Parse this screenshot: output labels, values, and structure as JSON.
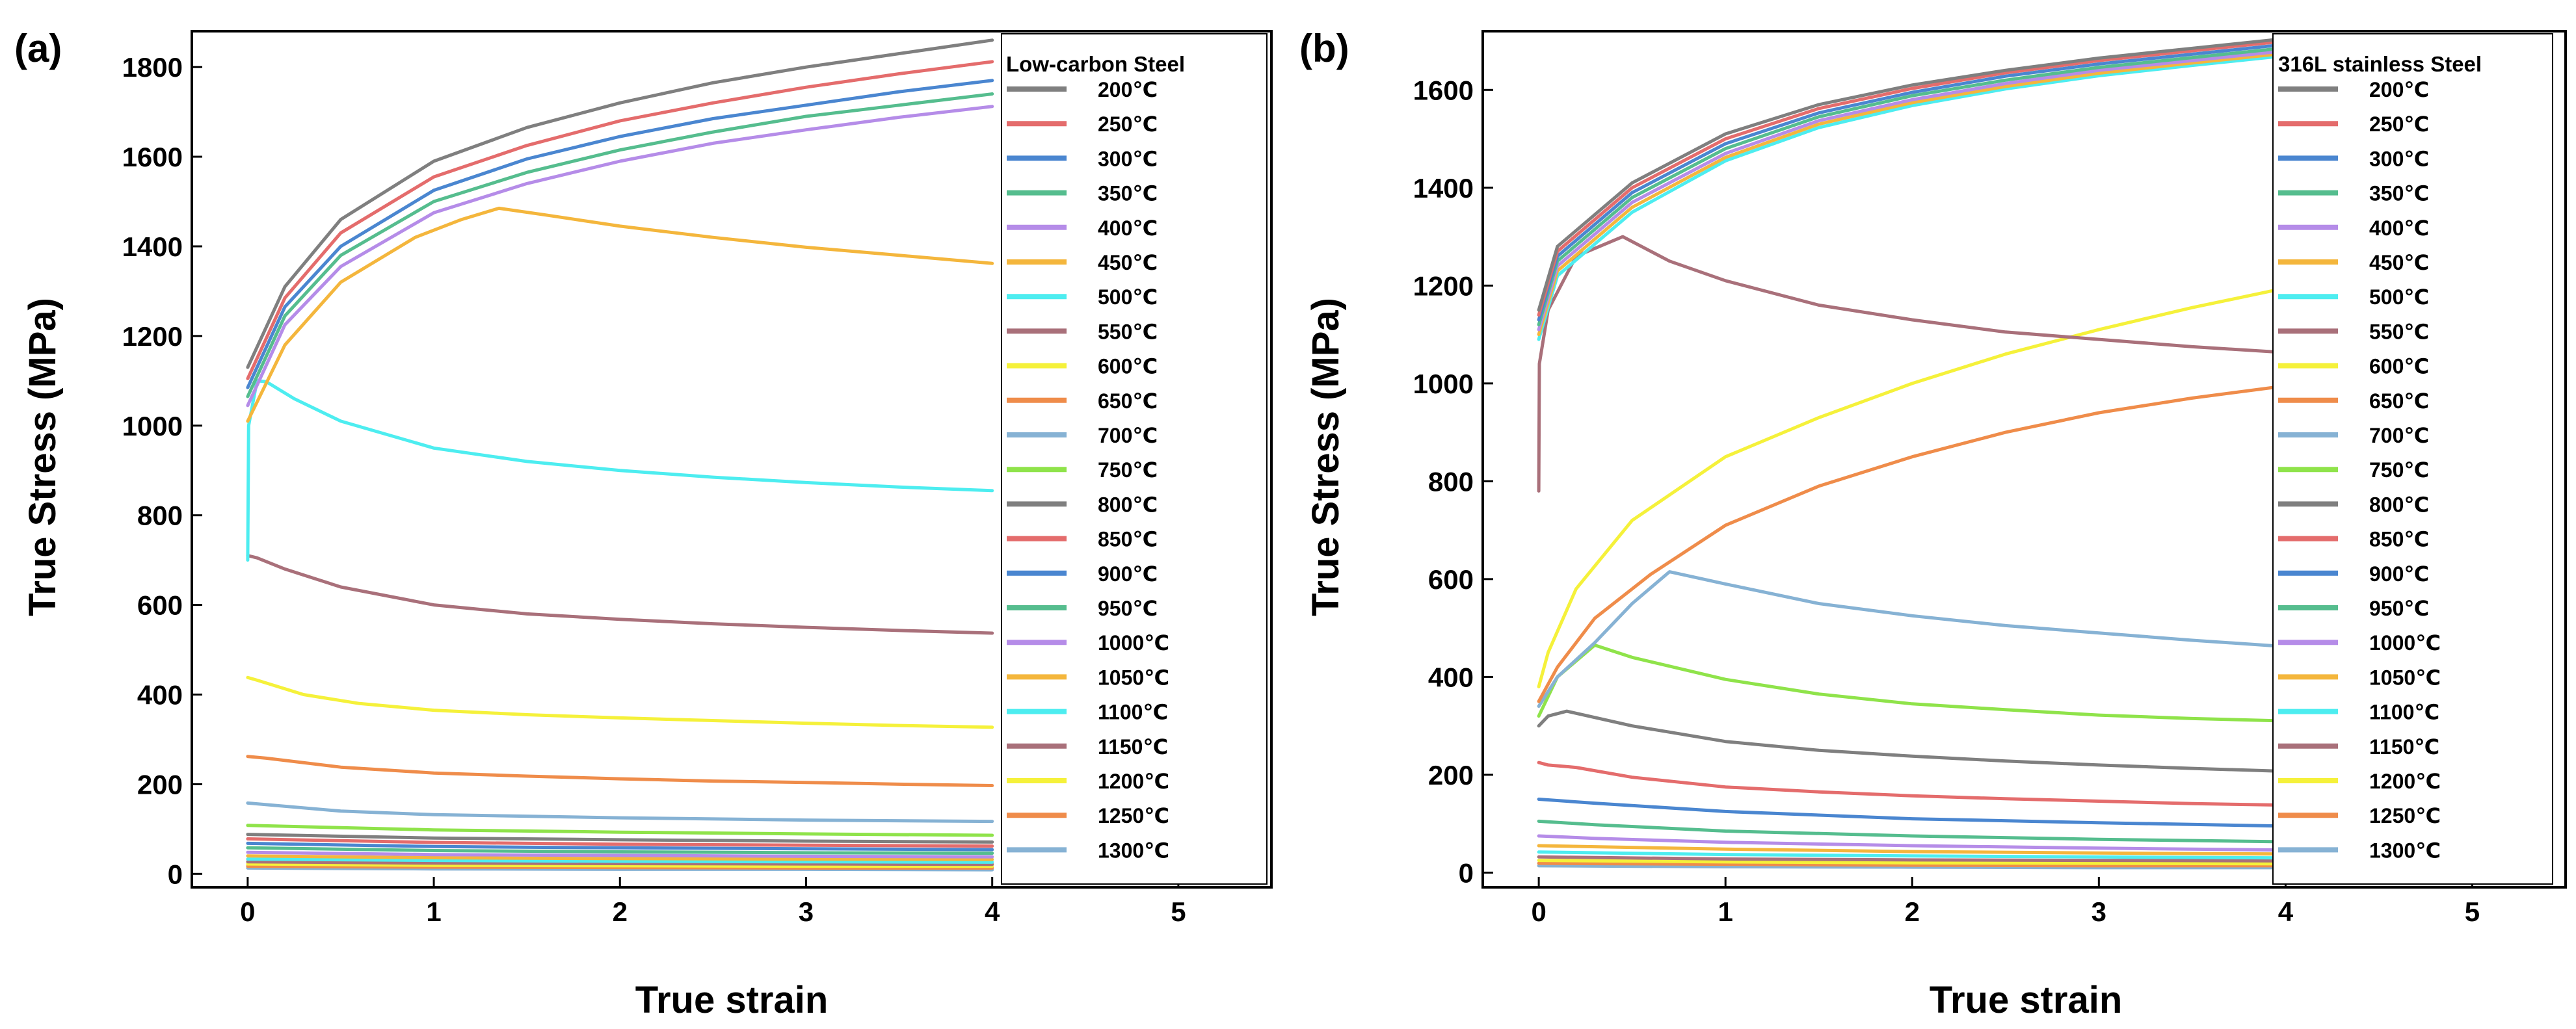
{
  "legend_labels": [
    "200℃",
    "250℃",
    "300℃",
    "350℃",
    "400℃",
    "450℃",
    "500℃",
    "550℃",
    "600℃",
    "650℃",
    "700℃",
    "750℃",
    "800℃",
    "850℃",
    "900℃",
    "950℃",
    "1000℃",
    "1050℃",
    "1100℃",
    "1150℃",
    "1200℃",
    "1250℃",
    "1300℃"
  ],
  "colors": [
    "#7f7f7f",
    "#e46c6c",
    "#4a86d0",
    "#55bd8e",
    "#b58ce8",
    "#f4b63c",
    "#4dedf0",
    "#a9707a",
    "#f5f13a",
    "#ef8c4a",
    "#86b2d4",
    "#8fe34a",
    "#7f7f7f",
    "#e46c6c",
    "#4a86d0",
    "#55bd8e",
    "#b58ce8",
    "#f4b63c",
    "#4dedf0",
    "#a9707a",
    "#f5f13a",
    "#ef8c4a",
    "#86b2d4"
  ],
  "chart_data": [
    {
      "type": "line",
      "panel_label": "(a)",
      "legend_title": "Low-carbon Steel",
      "xlabel": "True strain",
      "ylabel": "True Stress (MPa)",
      "xlim": [
        -0.3,
        5.5
      ],
      "ylim": [
        -30,
        1880
      ],
      "xticks": [
        0,
        1,
        2,
        3,
        4,
        5
      ],
      "yticks": [
        0,
        200,
        400,
        600,
        800,
        1000,
        1200,
        1400,
        1600,
        1800
      ],
      "series": [
        {
          "name": "200℃",
          "x": [
            0,
            0.2,
            0.5,
            1,
            1.5,
            2,
            2.5,
            3,
            3.5,
            4
          ],
          "y": [
            1130,
            1310,
            1460,
            1590,
            1665,
            1720,
            1765,
            1800,
            1830,
            1860
          ]
        },
        {
          "name": "250℃",
          "x": [
            0,
            0.2,
            0.5,
            1,
            1.5,
            2,
            2.5,
            3,
            3.5,
            4
          ],
          "y": [
            1105,
            1285,
            1430,
            1555,
            1625,
            1680,
            1720,
            1755,
            1785,
            1812
          ]
        },
        {
          "name": "300℃",
          "x": [
            0,
            0.2,
            0.5,
            1,
            1.5,
            2,
            2.5,
            3,
            3.5,
            4
          ],
          "y": [
            1085,
            1265,
            1400,
            1525,
            1595,
            1645,
            1685,
            1715,
            1745,
            1770
          ]
        },
        {
          "name": "350℃",
          "x": [
            0,
            0.2,
            0.5,
            1,
            1.5,
            2,
            2.5,
            3,
            3.5,
            4
          ],
          "y": [
            1065,
            1245,
            1380,
            1500,
            1565,
            1615,
            1655,
            1690,
            1715,
            1740
          ]
        },
        {
          "name": "400℃",
          "x": [
            0,
            0.2,
            0.5,
            1,
            1.5,
            2,
            2.5,
            3,
            3.5,
            4
          ],
          "y": [
            1045,
            1225,
            1355,
            1475,
            1540,
            1590,
            1630,
            1660,
            1688,
            1712
          ]
        },
        {
          "name": "450℃",
          "x": [
            0,
            0.2,
            0.5,
            0.9,
            1.15,
            1.35,
            1.6,
            2,
            2.5,
            3,
            3.5,
            4
          ],
          "y": [
            1010,
            1180,
            1320,
            1420,
            1460,
            1485,
            1470,
            1445,
            1420,
            1398,
            1380,
            1362
          ]
        },
        {
          "name": "500℃",
          "x": [
            0,
            0.005,
            0.05,
            0.1,
            0.25,
            0.5,
            1,
            1.5,
            2,
            2.5,
            3,
            3.5,
            4
          ],
          "y": [
            700,
            1000,
            1100,
            1098,
            1060,
            1010,
            950,
            920,
            900,
            885,
            873,
            863,
            855
          ]
        },
        {
          "name": "550℃",
          "x": [
            0,
            0.05,
            0.2,
            0.5,
            1,
            1.5,
            2,
            2.5,
            3,
            3.5,
            4
          ],
          "y": [
            710,
            705,
            680,
            640,
            600,
            580,
            568,
            558,
            550,
            543,
            537
          ]
        },
        {
          "name": "600℃",
          "x": [
            0,
            0.05,
            0.3,
            0.6,
            1,
            1.5,
            2,
            2.5,
            3,
            3.5,
            4
          ],
          "y": [
            438,
            432,
            400,
            380,
            365,
            355,
            348,
            342,
            336,
            331,
            327
          ]
        },
        {
          "name": "650℃",
          "x": [
            0,
            0.1,
            0.5,
            1,
            1.5,
            2,
            2.5,
            3,
            3.5,
            4
          ],
          "y": [
            262,
            258,
            238,
            225,
            218,
            212,
            207,
            204,
            200,
            197
          ]
        },
        {
          "name": "700℃",
          "x": [
            0,
            0.5,
            1,
            2,
            3,
            4
          ],
          "y": [
            158,
            140,
            132,
            125,
            120,
            117
          ]
        },
        {
          "name": "750℃",
          "x": [
            0,
            1,
            2,
            3,
            4
          ],
          "y": [
            108,
            98,
            93,
            89,
            86
          ]
        },
        {
          "name": "800℃",
          "x": [
            0,
            1,
            2,
            3,
            4
          ],
          "y": [
            88,
            80,
            76,
            73,
            71
          ]
        },
        {
          "name": "850℃",
          "x": [
            0,
            1,
            2,
            3,
            4
          ],
          "y": [
            78,
            70,
            66,
            64,
            62
          ]
        },
        {
          "name": "900℃",
          "x": [
            0,
            1,
            2,
            3,
            4
          ],
          "y": [
            68,
            61,
            58,
            56,
            54
          ]
        },
        {
          "name": "950℃",
          "x": [
            0,
            1,
            2,
            3,
            4
          ],
          "y": [
            58,
            52,
            49,
            47,
            46
          ]
        },
        {
          "name": "1000℃",
          "x": [
            0,
            1,
            2,
            3,
            4
          ],
          "y": [
            48,
            43,
            41,
            39,
            38
          ]
        },
        {
          "name": "1050℃",
          "x": [
            0,
            1,
            2,
            3,
            4
          ],
          "y": [
            40,
            36,
            34,
            33,
            32
          ]
        },
        {
          "name": "1100℃",
          "x": [
            0,
            1,
            2,
            3,
            4
          ],
          "y": [
            33,
            30,
            28,
            27,
            26
          ]
        },
        {
          "name": "1150℃",
          "x": [
            0,
            1,
            2,
            3,
            4
          ],
          "y": [
            27,
            24,
            23,
            22,
            21
          ]
        },
        {
          "name": "1200℃",
          "x": [
            0,
            1,
            2,
            3,
            4
          ],
          "y": [
            22,
            19,
            18,
            17,
            17
          ]
        },
        {
          "name": "1250℃",
          "x": [
            0,
            1,
            2,
            3,
            4
          ],
          "y": [
            17,
            15,
            14,
            13,
            13
          ]
        },
        {
          "name": "1300℃",
          "x": [
            0,
            1,
            2,
            3,
            4
          ],
          "y": [
            13,
            11,
            10,
            10,
            9
          ]
        }
      ]
    },
    {
      "type": "line",
      "panel_label": "(b)",
      "legend_title": "316L stainless Steel",
      "xlabel": "True strain",
      "ylabel": "True Stress (MPa)",
      "xlim": [
        -0.3,
        5.5
      ],
      "ylim": [
        -30,
        1720
      ],
      "xticks": [
        0,
        1,
        2,
        3,
        4,
        5
      ],
      "yticks": [
        0,
        200,
        400,
        600,
        800,
        1000,
        1200,
        1400,
        1600
      ],
      "series": [
        {
          "name": "200℃",
          "x": [
            0,
            0.1,
            0.5,
            1,
            1.5,
            2,
            2.5,
            3,
            3.5,
            4
          ],
          "y": [
            1150,
            1280,
            1410,
            1510,
            1570,
            1610,
            1640,
            1665,
            1685,
            1705
          ]
        },
        {
          "name": "250℃",
          "x": [
            0,
            0.1,
            0.5,
            1,
            1.5,
            2,
            2.5,
            3,
            3.5,
            4
          ],
          "y": [
            1140,
            1270,
            1400,
            1500,
            1562,
            1603,
            1635,
            1660,
            1680,
            1700
          ]
        },
        {
          "name": "300℃",
          "x": [
            0,
            0.1,
            0.5,
            1,
            1.5,
            2,
            2.5,
            3,
            3.5,
            4
          ],
          "y": [
            1130,
            1260,
            1390,
            1490,
            1553,
            1595,
            1628,
            1653,
            1673,
            1693
          ]
        },
        {
          "name": "350℃",
          "x": [
            0,
            0.1,
            0.5,
            1,
            1.5,
            2,
            2.5,
            3,
            3.5,
            4
          ],
          "y": [
            1120,
            1250,
            1380,
            1480,
            1545,
            1588,
            1620,
            1646,
            1666,
            1686
          ]
        },
        {
          "name": "400℃",
          "x": [
            0,
            0.1,
            0.5,
            1,
            1.5,
            2,
            2.5,
            3,
            3.5,
            4
          ],
          "y": [
            1110,
            1240,
            1370,
            1470,
            1537,
            1580,
            1613,
            1640,
            1660,
            1680
          ]
        },
        {
          "name": "450℃",
          "x": [
            0,
            0.1,
            0.5,
            1,
            1.5,
            2,
            2.5,
            3,
            3.5,
            4
          ],
          "y": [
            1100,
            1230,
            1360,
            1462,
            1530,
            1574,
            1607,
            1634,
            1655,
            1675
          ]
        },
        {
          "name": "500℃",
          "x": [
            0,
            0.1,
            0.5,
            1,
            1.5,
            2,
            2.5,
            3,
            3.5,
            4
          ],
          "y": [
            1090,
            1220,
            1350,
            1455,
            1523,
            1568,
            1602,
            1629,
            1650,
            1670
          ]
        },
        {
          "name": "550℃",
          "x": [
            0,
            0.003,
            0.05,
            0.2,
            0.45,
            0.7,
            1,
            1.5,
            2,
            2.5,
            3,
            3.5,
            4
          ],
          "y": [
            780,
            1040,
            1150,
            1260,
            1300,
            1250,
            1210,
            1160,
            1130,
            1105,
            1090,
            1075,
            1063
          ]
        },
        {
          "name": "600℃",
          "x": [
            0,
            0.05,
            0.2,
            0.5,
            1,
            1.5,
            2,
            2.5,
            3,
            3.5,
            4
          ],
          "y": [
            380,
            450,
            580,
            720,
            850,
            930,
            1000,
            1060,
            1110,
            1155,
            1195
          ]
        },
        {
          "name": "650℃",
          "x": [
            0,
            0.1,
            0.3,
            0.6,
            1,
            1.5,
            2,
            2.5,
            3,
            3.5,
            4
          ],
          "y": [
            350,
            420,
            520,
            610,
            710,
            790,
            850,
            900,
            940,
            970,
            995
          ]
        },
        {
          "name": "700℃",
          "x": [
            0,
            0.1,
            0.3,
            0.5,
            0.7,
            1,
            1.5,
            2,
            2.5,
            3,
            3.5,
            4
          ],
          "y": [
            340,
            400,
            470,
            550,
            615,
            590,
            550,
            525,
            505,
            490,
            475,
            462
          ]
        },
        {
          "name": "750℃",
          "x": [
            0,
            0.1,
            0.3,
            0.5,
            1,
            1.5,
            2,
            2.5,
            3,
            3.5,
            4
          ],
          "y": [
            320,
            400,
            465,
            440,
            395,
            365,
            345,
            333,
            322,
            315,
            310
          ]
        },
        {
          "name": "800℃",
          "x": [
            0,
            0.05,
            0.15,
            0.5,
            1,
            1.5,
            2,
            2.5,
            3,
            3.5,
            4
          ],
          "y": [
            300,
            320,
            330,
            300,
            268,
            250,
            238,
            228,
            220,
            213,
            207
          ]
        },
        {
          "name": "850℃",
          "x": [
            0,
            0.05,
            0.2,
            0.5,
            1,
            1.5,
            2,
            2.5,
            3,
            3.5,
            4
          ],
          "y": [
            225,
            220,
            215,
            195,
            175,
            165,
            157,
            151,
            146,
            141,
            138
          ]
        },
        {
          "name": "900℃",
          "x": [
            0,
            0.3,
            1,
            2,
            3,
            4
          ],
          "y": [
            150,
            142,
            125,
            110,
            102,
            95
          ]
        },
        {
          "name": "950℃",
          "x": [
            0,
            0.3,
            1,
            2,
            3,
            4
          ],
          "y": [
            105,
            98,
            85,
            75,
            68,
            63
          ]
        },
        {
          "name": "1000℃",
          "x": [
            0,
            0.3,
            1,
            2,
            3,
            4
          ],
          "y": [
            75,
            70,
            62,
            55,
            50,
            46
          ]
        },
        {
          "name": "1050℃",
          "x": [
            0,
            1,
            2,
            3,
            4
          ],
          "y": [
            55,
            48,
            43,
            40,
            38
          ]
        },
        {
          "name": "1100℃",
          "x": [
            0,
            1,
            2,
            3,
            4
          ],
          "y": [
            42,
            37,
            34,
            32,
            30
          ]
        },
        {
          "name": "1150℃",
          "x": [
            0,
            1,
            2,
            3,
            4
          ],
          "y": [
            32,
            28,
            26,
            25,
            24
          ]
        },
        {
          "name": "1200℃",
          "x": [
            0,
            1,
            2,
            3,
            4
          ],
          "y": [
            25,
            22,
            20,
            19,
            18
          ]
        },
        {
          "name": "1250℃",
          "x": [
            0,
            1,
            2,
            3,
            4
          ],
          "y": [
            19,
            17,
            15,
            14,
            14
          ]
        },
        {
          "name": "1300℃",
          "x": [
            0,
            1,
            2,
            3,
            4
          ],
          "y": [
            14,
            12,
            11,
            10,
            10
          ]
        }
      ]
    }
  ]
}
